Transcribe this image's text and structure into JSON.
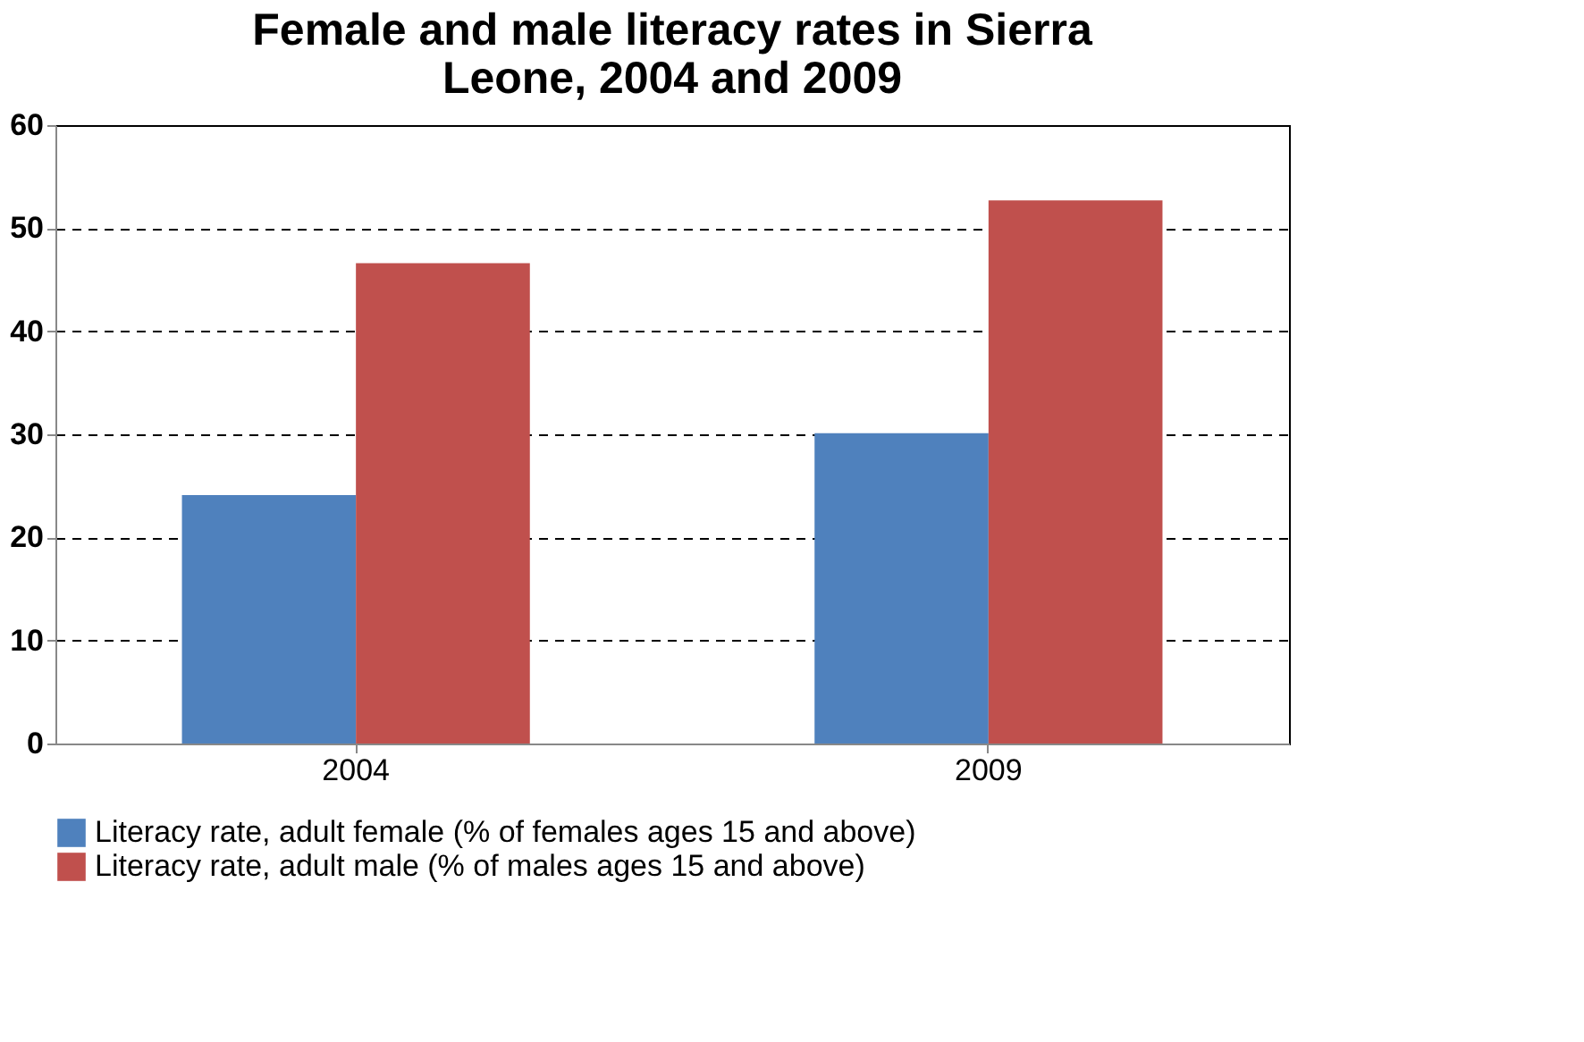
{
  "chart_data": {
    "type": "bar",
    "title": "Female and male literacy rates in Sierra Leone, 2004 and 2009",
    "categories": [
      "2004",
      "2009"
    ],
    "series": [
      {
        "name": "Literacy rate, adult female (% of females ages 15 and above)",
        "color": "#4f81bd",
        "values": [
          24.1,
          30.1
        ]
      },
      {
        "name": "Literacy rate, adult male (% of males ages 15 and above)",
        "color": "#c0504d",
        "values": [
          46.6,
          52.7
        ]
      }
    ],
    "ylim": [
      0,
      60
    ],
    "yticks": [
      0,
      10,
      20,
      30,
      40,
      50,
      60
    ],
    "grid": "y",
    "legend": "bottom"
  }
}
